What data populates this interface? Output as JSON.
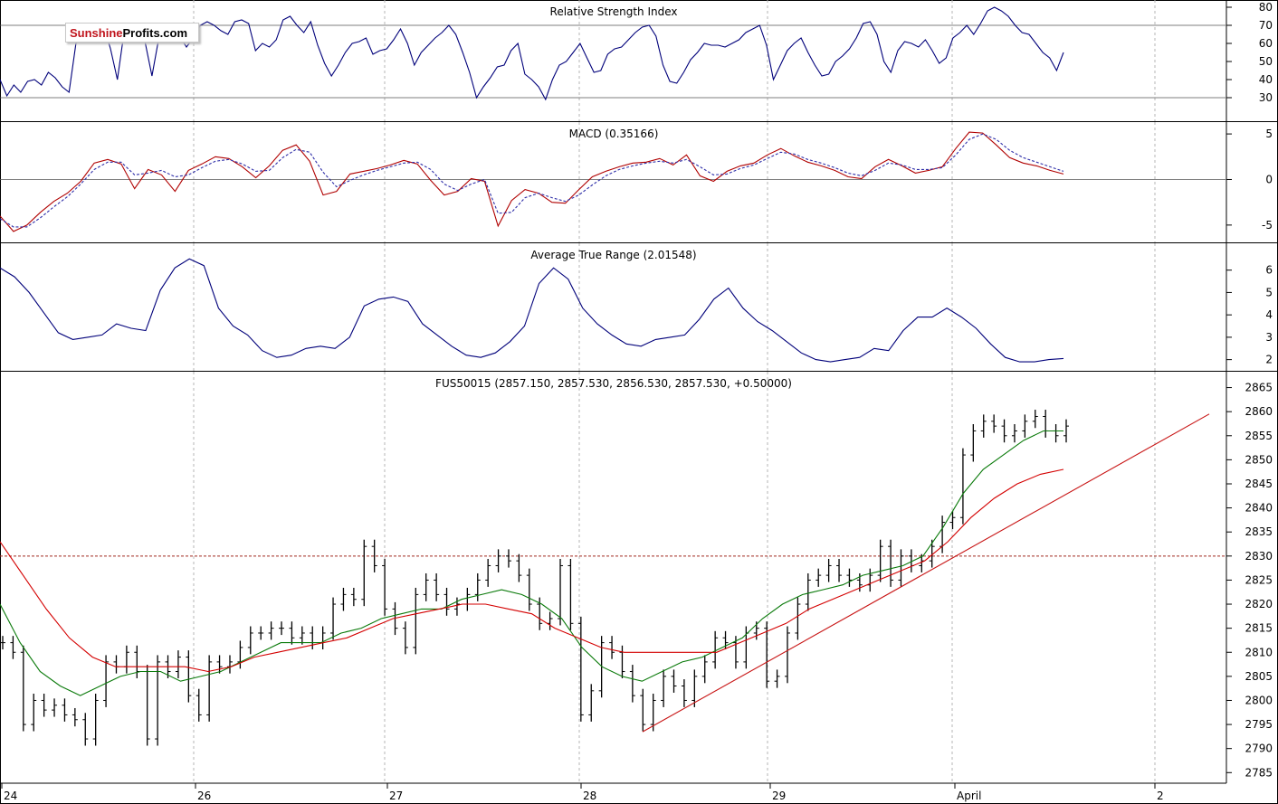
{
  "logo": {
    "part1": "Sunshine",
    "part2": "Profits.com"
  },
  "chart_data": [
    {
      "type": "line",
      "title": "Relative Strength Index",
      "yticks": [
        30,
        40,
        50,
        60,
        70,
        80
      ],
      "ylim": [
        17,
        84
      ],
      "reference_lines": [
        30,
        70
      ],
      "series": [
        {
          "color": "#00007a",
          "values": [
            40,
            31,
            37,
            33,
            39,
            40,
            37,
            44,
            41,
            36,
            33,
            60,
            64,
            68,
            61,
            70,
            57,
            40,
            67,
            66,
            70,
            61,
            42,
            63,
            66,
            71,
            64,
            58,
            63,
            70,
            72,
            70,
            67,
            65,
            72,
            73,
            71,
            56,
            60,
            58,
            62,
            73,
            75,
            70,
            66,
            72,
            59,
            49,
            42,
            48,
            55,
            60,
            61,
            63,
            54,
            56,
            57,
            62,
            68,
            60,
            48,
            55,
            59,
            63,
            66,
            70,
            65,
            55,
            44,
            30,
            36,
            41,
            47,
            48,
            56,
            60,
            43,
            40,
            36,
            29,
            40,
            48,
            50,
            55,
            60,
            52,
            44,
            45,
            54,
            57,
            58,
            62,
            66,
            69,
            70,
            64,
            48,
            39,
            38,
            44,
            51,
            55,
            60,
            59,
            59,
            58,
            60,
            62,
            66,
            68,
            70,
            59,
            40,
            48,
            56,
            60,
            63,
            55,
            48,
            42,
            43,
            50,
            53,
            57,
            63,
            71,
            72,
            65,
            50,
            44,
            56,
            61,
            60,
            58,
            62,
            56,
            49,
            52,
            63,
            66,
            70,
            65,
            71,
            78,
            80,
            78,
            75,
            70,
            66,
            65,
            60,
            55,
            52,
            45,
            55
          ]
        }
      ]
    },
    {
      "type": "line",
      "title": "MACD (0.35166)",
      "yticks": [
        -5,
        0,
        5
      ],
      "ylim": [
        -6.9,
        6.3
      ],
      "reference_lines": [
        0
      ],
      "series": [
        {
          "name": "MACD",
          "color": "#b00000",
          "values": [
            -4,
            -5.7,
            -5,
            -3.6,
            -2.4,
            -1.5,
            -0.2,
            1.8,
            2.2,
            1.7,
            -1,
            1.1,
            0.5,
            -1.3,
            1,
            1.7,
            2.5,
            2.3,
            1.4,
            0.2,
            1.5,
            3.2,
            3.8,
            2,
            -1.7,
            -1.3,
            0.6,
            0.9,
            1.2,
            1.6,
            2.1,
            1.7,
            -0.1,
            -1.7,
            -1.3,
            0.1,
            -0.2,
            -5.1,
            -2.3,
            -1.1,
            -1.5,
            -2.5,
            -2.6,
            -1.1,
            0.3,
            0.9,
            1.4,
            1.8,
            1.9,
            2.3,
            1.6,
            2.7,
            0.4,
            -0.2,
            0.9,
            1.5,
            1.8,
            2.7,
            3.4,
            2.6,
            1.9,
            1.5,
            1,
            0.3,
            0.1,
            1.4,
            2.2,
            1.5,
            0.7,
            1,
            1.4,
            3.4,
            5.2,
            5.1,
            3.8,
            2.4,
            1.8,
            1.5,
            1,
            0.6
          ]
        },
        {
          "name": "Signal",
          "color": "#2e2ea8",
          "values": [
            -4.3,
            -5.2,
            -5.2,
            -4.2,
            -3,
            -1.9,
            -0.5,
            1.1,
            1.9,
            1.9,
            0.5,
            0.7,
            1,
            0.3,
            0.5,
            1.3,
            2,
            2.2,
            1.7,
            0.9,
            1,
            2.4,
            3.3,
            3,
            0.8,
            -0.8,
            -0.1,
            0.5,
            1,
            1.4,
            1.8,
            1.9,
            1.1,
            -0.5,
            -1.2,
            -0.5,
            0,
            -3.7,
            -3.6,
            -2,
            -1.5,
            -2,
            -2.4,
            -1.7,
            -0.6,
            0.4,
            1.1,
            1.5,
            1.8,
            2,
            1.8,
            2.2,
            1.4,
            0.5,
            0.6,
            1.2,
            1.6,
            2.3,
            3,
            2.8,
            2.2,
            1.8,
            1.3,
            0.7,
            0.4,
            1,
            1.8,
            1.6,
            1.1,
            1.1,
            1.3,
            2.7,
            4.4,
            5,
            4.4,
            3.2,
            2.4,
            1.9,
            1.4,
            0.9
          ]
        }
      ]
    },
    {
      "type": "line",
      "title": "Average True Range (2.01548)",
      "yticks": [
        2,
        3,
        4,
        5,
        6
      ],
      "ylim": [
        1.5,
        7.2
      ],
      "series": [
        {
          "color": "#00007a",
          "values": [
            6.1,
            5.7,
            5,
            4.1,
            3.2,
            2.9,
            3,
            3.1,
            3.6,
            3.4,
            3.3,
            5.1,
            6.1,
            6.5,
            6.2,
            4.3,
            3.5,
            3.1,
            2.4,
            2.1,
            2.2,
            2.5,
            2.6,
            2.5,
            3,
            4.4,
            4.7,
            4.8,
            4.6,
            3.6,
            3.1,
            2.6,
            2.2,
            2.1,
            2.3,
            2.8,
            3.5,
            5.4,
            6.1,
            5.6,
            4.3,
            3.6,
            3.1,
            2.7,
            2.6,
            2.9,
            3,
            3.1,
            3.8,
            4.7,
            5.2,
            4.3,
            3.7,
            3.3,
            2.8,
            2.3,
            2,
            1.9,
            2,
            2.1,
            2.5,
            2.4,
            3.3,
            3.9,
            3.9,
            4.3,
            3.9,
            3.4,
            2.7,
            2.1,
            1.9,
            1.9,
            2,
            2.05
          ]
        }
      ]
    },
    {
      "type": "line",
      "title": "FUS50015 (2857.150, 2857.530, 2856.530, 2857.530, +0.50000)",
      "yticks": [
        2785,
        2790,
        2795,
        2800,
        2805,
        2810,
        2815,
        2820,
        2825,
        2830,
        2835,
        2840,
        2845,
        2850,
        2855,
        2860,
        2865
      ],
      "ylim": [
        2782.8,
        2868.3
      ],
      "x_labels": [
        "24",
        "26",
        "27",
        "28",
        "29",
        "April",
        "2"
      ],
      "reference_lines": [
        2830
      ],
      "series": [
        {
          "name": "price",
          "color": "#000000",
          "values": [
            2812,
            2810,
            2795,
            2800,
            2798,
            2799,
            2797,
            2796,
            2792,
            2800,
            2808,
            2807,
            2810,
            2806,
            2792,
            2808,
            2806,
            2809,
            2801,
            2797,
            2808,
            2807,
            2808,
            2811,
            2814,
            2814,
            2815,
            2815,
            2813,
            2814,
            2812,
            2814,
            2820,
            2822,
            2821,
            2832,
            2828,
            2819,
            2815,
            2811,
            2822,
            2825,
            2822,
            2819,
            2820,
            2822,
            2825,
            2828,
            2830,
            2829,
            2826,
            2820,
            2816,
            2817,
            2828,
            2816,
            2797,
            2802,
            2812,
            2810,
            2806,
            2801,
            2795,
            2800,
            2805,
            2803,
            2800,
            2805,
            2808,
            2813,
            2812,
            2808,
            2814,
            2815,
            2804,
            2805,
            2814,
            2820,
            2825,
            2826,
            2828,
            2826,
            2825,
            2824,
            2826,
            2832,
            2825,
            2830,
            2828,
            2829,
            2832,
            2837,
            2838,
            2851,
            2856,
            2858,
            2857,
            2855,
            2856,
            2858,
            2859,
            2856,
            2855,
            2857
          ]
        },
        {
          "name": "MA short",
          "color": "#0a7a0a",
          "values": [
            2820,
            2812,
            2806,
            2803,
            2801,
            2803,
            2805,
            2806,
            2806,
            2804,
            2805,
            2806,
            2808,
            2810,
            2812,
            2812,
            2812,
            2814,
            2815,
            2817,
            2818,
            2819,
            2819,
            2821,
            2822,
            2823,
            2822,
            2820,
            2817,
            2811,
            2807,
            2805,
            2804,
            2806,
            2808,
            2809,
            2811,
            2813,
            2817,
            2820,
            2822,
            2823,
            2824,
            2826,
            2827,
            2828,
            2830,
            2836,
            2843,
            2848,
            2851,
            2854,
            2856,
            2856
          ]
        },
        {
          "name": "MA long",
          "color": "#d40000",
          "values": [
            2833,
            2826,
            2819,
            2813,
            2809,
            2807,
            2807,
            2807,
            2807,
            2806,
            2807,
            2809,
            2810,
            2811,
            2812,
            2813,
            2815,
            2817,
            2818,
            2819,
            2820,
            2820,
            2819,
            2818,
            2815,
            2813,
            2811,
            2810,
            2810,
            2810,
            2810,
            2810,
            2812,
            2814,
            2816,
            2819,
            2821,
            2823,
            2825,
            2827,
            2829,
            2833,
            2838,
            2842,
            2845,
            2847,
            2848
          ]
        },
        {
          "name": "trend line",
          "color": "#c81414",
          "values": [
            2793.5,
            2859.5
          ]
        }
      ]
    }
  ]
}
